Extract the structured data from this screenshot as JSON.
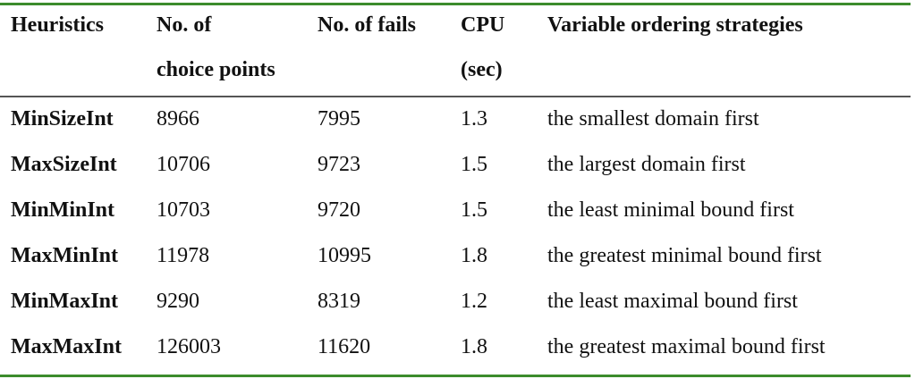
{
  "table": {
    "header": [
      [
        "Heuristics"
      ],
      [
        "No. of",
        "choice points"
      ],
      [
        "No. of fails"
      ],
      [
        "CPU",
        "(sec)"
      ],
      [
        "Variable ordering strategies"
      ]
    ],
    "rows": [
      [
        "MinSizeInt",
        "8966",
        "7995",
        "1.3",
        "the smallest domain first"
      ],
      [
        "MaxSizeInt",
        "10706",
        "9723",
        "1.5",
        "the largest domain first"
      ],
      [
        "MinMinInt",
        "10703",
        "9720",
        "1.5",
        "the least minimal bound first"
      ],
      [
        "MaxMinInt",
        "11978",
        "10995",
        "1.8",
        "the greatest minimal bound first"
      ],
      [
        "MinMaxInt",
        "9290",
        "8319",
        "1.2",
        "the least maximal bound first"
      ],
      [
        "MaxMaxInt",
        "126003",
        "11620",
        "1.8",
        "the greatest maximal bound first"
      ]
    ]
  }
}
